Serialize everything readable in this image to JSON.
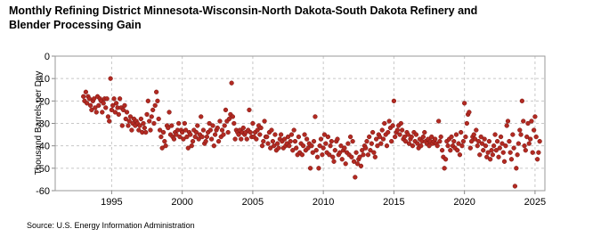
{
  "chart_data": {
    "type": "scatter",
    "title": "Monthly Refining District Minnesota-Wisconsin-North Dakota-South Dakota Refinery and Blender Processing Gain",
    "y_label": "Thousand Barrels per Day",
    "source": "Source: U.S. Energy Information Administration",
    "color": "#b22a22",
    "grid": true,
    "xlim": [
      1991,
      2025.7
    ],
    "xticks": [
      1995,
      2000,
      2005,
      2010,
      2015,
      2020,
      2025
    ],
    "ylim": [
      -60,
      0
    ],
    "yticks": [
      0,
      -10,
      -20,
      -30,
      -40,
      -50,
      -60
    ],
    "x": [
      1993,
      1993.08,
      1993.17,
      1993.25,
      1993.33,
      1993.42,
      1993.5,
      1993.58,
      1993.67,
      1993.75,
      1993.83,
      1993.92,
      1994,
      1994.08,
      1994.17,
      1994.25,
      1994.33,
      1994.42,
      1994.5,
      1994.58,
      1994.67,
      1994.75,
      1994.83,
      1994.92,
      1995,
      1995.08,
      1995.17,
      1995.25,
      1995.33,
      1995.42,
      1995.5,
      1995.58,
      1995.67,
      1995.75,
      1995.83,
      1995.92,
      1996,
      1996.08,
      1996.17,
      1996.25,
      1996.33,
      1996.42,
      1996.5,
      1996.58,
      1996.67,
      1996.75,
      1996.83,
      1996.92,
      1997,
      1997.08,
      1997.17,
      1997.25,
      1997.33,
      1997.42,
      1997.5,
      1997.58,
      1997.67,
      1997.75,
      1997.83,
      1997.92,
      1998,
      1998.08,
      1998.17,
      1998.25,
      1998.33,
      1998.42,
      1998.5,
      1998.58,
      1998.67,
      1998.75,
      1998.83,
      1998.92,
      1999,
      1999.08,
      1999.17,
      1999.25,
      1999.33,
      1999.42,
      1999.5,
      1999.58,
      1999.67,
      1999.75,
      1999.83,
      1999.92,
      2000,
      2000.08,
      2000.17,
      2000.25,
      2000.33,
      2000.42,
      2000.5,
      2000.58,
      2000.67,
      2000.75,
      2000.83,
      2000.92,
      2001,
      2001.08,
      2001.17,
      2001.25,
      2001.33,
      2001.42,
      2001.5,
      2001.58,
      2001.67,
      2001.75,
      2001.83,
      2001.92,
      2002,
      2002.08,
      2002.17,
      2002.25,
      2002.33,
      2002.42,
      2002.5,
      2002.58,
      2002.67,
      2002.75,
      2002.83,
      2002.92,
      2003,
      2003.08,
      2003.17,
      2003.25,
      2003.33,
      2003.42,
      2003.5,
      2003.58,
      2003.67,
      2003.75,
      2003.83,
      2003.92,
      2004,
      2004.08,
      2004.17,
      2004.25,
      2004.33,
      2004.42,
      2004.5,
      2004.58,
      2004.67,
      2004.75,
      2004.83,
      2004.92,
      2005,
      2005.08,
      2005.17,
      2005.25,
      2005.33,
      2005.42,
      2005.5,
      2005.58,
      2005.67,
      2005.75,
      2005.83,
      2005.92,
      2006,
      2006.08,
      2006.17,
      2006.25,
      2006.33,
      2006.42,
      2006.5,
      2006.58,
      2006.67,
      2006.75,
      2006.83,
      2006.92,
      2007,
      2007.08,
      2007.17,
      2007.25,
      2007.33,
      2007.42,
      2007.5,
      2007.58,
      2007.67,
      2007.75,
      2007.83,
      2007.92,
      2008,
      2008.08,
      2008.17,
      2008.25,
      2008.33,
      2008.42,
      2008.5,
      2008.58,
      2008.67,
      2008.75,
      2008.83,
      2008.92,
      2009,
      2009.08,
      2009.17,
      2009.25,
      2009.33,
      2009.42,
      2009.5,
      2009.58,
      2009.67,
      2009.75,
      2009.83,
      2009.92,
      2010,
      2010.08,
      2010.17,
      2010.25,
      2010.33,
      2010.42,
      2010.5,
      2010.58,
      2010.67,
      2010.75,
      2010.83,
      2010.92,
      2011,
      2011.08,
      2011.17,
      2011.25,
      2011.33,
      2011.42,
      2011.5,
      2011.58,
      2011.67,
      2011.75,
      2011.83,
      2011.92,
      2012,
      2012.08,
      2012.17,
      2012.25,
      2012.33,
      2012.42,
      2012.5,
      2012.58,
      2012.67,
      2012.75,
      2012.83,
      2012.92,
      2013,
      2013.08,
      2013.17,
      2013.25,
      2013.33,
      2013.42,
      2013.5,
      2013.58,
      2013.67,
      2013.75,
      2013.83,
      2013.92,
      2014,
      2014.08,
      2014.17,
      2014.25,
      2014.33,
      2014.42,
      2014.5,
      2014.58,
      2014.67,
      2014.75,
      2014.83,
      2014.92,
      2015,
      2015.08,
      2015.17,
      2015.25,
      2015.33,
      2015.42,
      2015.5,
      2015.58,
      2015.67,
      2015.75,
      2015.83,
      2015.92,
      2016,
      2016.08,
      2016.17,
      2016.25,
      2016.33,
      2016.42,
      2016.5,
      2016.58,
      2016.67,
      2016.75,
      2016.83,
      2016.92,
      2017,
      2017.08,
      2017.17,
      2017.25,
      2017.33,
      2017.42,
      2017.5,
      2017.58,
      2017.67,
      2017.75,
      2017.83,
      2017.92,
      2018,
      2018.08,
      2018.17,
      2018.25,
      2018.33,
      2018.42,
      2018.5,
      2018.58,
      2018.67,
      2018.75,
      2018.83,
      2018.92,
      2019,
      2019.08,
      2019.17,
      2019.25,
      2019.33,
      2019.42,
      2019.5,
      2019.58,
      2019.67,
      2019.75,
      2019.83,
      2019.92,
      2020,
      2020.08,
      2020.17,
      2020.25,
      2020.33,
      2020.42,
      2020.5,
      2020.58,
      2020.67,
      2020.75,
      2020.83,
      2020.92,
      2021,
      2021.08,
      2021.17,
      2021.25,
      2021.33,
      2021.42,
      2021.5,
      2021.58,
      2021.67,
      2021.75,
      2021.83,
      2021.92,
      2022,
      2022.08,
      2022.17,
      2022.25,
      2022.33,
      2022.42,
      2022.5,
      2022.58,
      2022.67,
      2022.75,
      2022.83,
      2022.92,
      2023,
      2023.08,
      2023.17,
      2023.25,
      2023.33,
      2023.42,
      2023.5,
      2023.58,
      2023.67,
      2023.75,
      2023.83,
      2023.92,
      2024,
      2024.08,
      2024.17,
      2024.25,
      2024.33,
      2024.42,
      2024.5,
      2024.58,
      2024.67,
      2024.75,
      2024.83,
      2024.92,
      2025,
      2025.08,
      2025.17,
      2025.25,
      2025.33
    ],
    "values": [
      -18,
      -20,
      -16,
      -21,
      -18,
      -19,
      -22,
      -24,
      -20,
      -19,
      -23,
      -25,
      -18,
      -22,
      -19,
      -20,
      -25,
      -21,
      -19,
      -23,
      -19,
      -27,
      -29,
      -10,
      -24,
      -22,
      -19,
      -25,
      -21,
      -23,
      -26,
      -19,
      -23,
      -31,
      -24,
      -22,
      -28,
      -25,
      -31,
      -29,
      -27,
      -33,
      -30,
      -28,
      -31,
      -29,
      -30,
      -33,
      -31,
      -28,
      -34,
      -30,
      -32,
      -34,
      -26,
      -20,
      -29,
      -33,
      -27,
      -24,
      -30,
      -22,
      -16,
      -20,
      -28,
      -33,
      -36,
      -41,
      -34,
      -38,
      -40,
      -31,
      -32,
      -25,
      -35,
      -31,
      -36,
      -37,
      -34,
      -35,
      -33,
      -30,
      -36,
      -33,
      -34,
      -37,
      -30,
      -33,
      -36,
      -41,
      -34,
      -35,
      -40,
      -38,
      -33,
      -36,
      -34,
      -31,
      -37,
      -35,
      -27,
      -36,
      -33,
      -39,
      -38,
      -36,
      -34,
      -30,
      -33,
      -37,
      -31,
      -40,
      -35,
      -33,
      -32,
      -38,
      -29,
      -36,
      -33,
      -35,
      -31,
      -24,
      -29,
      -34,
      -28,
      -26,
      -12,
      -27,
      -30,
      -37,
      -33,
      -34,
      -35,
      -33,
      -37,
      -34,
      -32,
      -35,
      -34,
      -37,
      -33,
      -24,
      -34,
      -36,
      -30,
      -36,
      -34,
      -37,
      -33,
      -31,
      -35,
      -32,
      -40,
      -38,
      -29,
      -36,
      -36,
      -39,
      -34,
      -41,
      -33,
      -38,
      -40,
      -35,
      -42,
      -39,
      -41,
      -37,
      -35,
      -38,
      -41,
      -37,
      -40,
      -39,
      -36,
      -40,
      -38,
      -35,
      -42,
      -33,
      -38,
      -41,
      -44,
      -36,
      -43,
      -39,
      -44,
      -40,
      -35,
      -42,
      -37,
      -41,
      -39,
      -50,
      -40,
      -43,
      -38,
      -27,
      -42,
      -45,
      -50,
      -40,
      -37,
      -44,
      -41,
      -35,
      -39,
      -43,
      -36,
      -44,
      -40,
      -38,
      -45,
      -47,
      -42,
      -38,
      -37,
      -44,
      -43,
      -40,
      -46,
      -42,
      -41,
      -48,
      -43,
      -39,
      -44,
      -36,
      -45,
      -38,
      -47,
      -54,
      -43,
      -48,
      -46,
      -45,
      -49,
      -42,
      -44,
      -40,
      -41,
      -38,
      -44,
      -36,
      -42,
      -39,
      -34,
      -43,
      -45,
      -37,
      -40,
      -35,
      -36,
      -39,
      -33,
      -37,
      -30,
      -35,
      -40,
      -34,
      -29,
      -32,
      -38,
      -31,
      -20,
      -36,
      -34,
      -33,
      -31,
      -35,
      -30,
      -33,
      -37,
      -36,
      -38,
      -34,
      -35,
      -39,
      -37,
      -36,
      -40,
      -34,
      -38,
      -35,
      -39,
      -41,
      -37,
      -40,
      -38,
      -36,
      -34,
      -38,
      -39,
      -37,
      -40,
      -38,
      -36,
      -39,
      -38,
      -37,
      -39,
      -40,
      -29,
      -38,
      -36,
      -42,
      -45,
      -50,
      -46,
      -38,
      -40,
      -37,
      -42,
      -36,
      -40,
      -38,
      -41,
      -35,
      -42,
      -39,
      -44,
      -34,
      -40,
      -38,
      -21,
      -36,
      -30,
      -26,
      -25,
      -41,
      -38,
      -36,
      -35,
      -37,
      -33,
      -40,
      -38,
      -44,
      -36,
      -39,
      -42,
      -37,
      -40,
      -45,
      -43,
      -38,
      -46,
      -42,
      -44,
      -40,
      -35,
      -42,
      -38,
      -45,
      -41,
      -36,
      -39,
      -43,
      -47,
      -40,
      -31,
      -29,
      -38,
      -43,
      -46,
      -35,
      -41,
      -58,
      -50,
      -44,
      -39,
      -33,
      -35,
      -20,
      -29,
      -40,
      -42,
      -36,
      -30,
      -39,
      -37,
      -29,
      -43,
      -33,
      -27,
      -36,
      -46,
      -43,
      -38
    ]
  }
}
